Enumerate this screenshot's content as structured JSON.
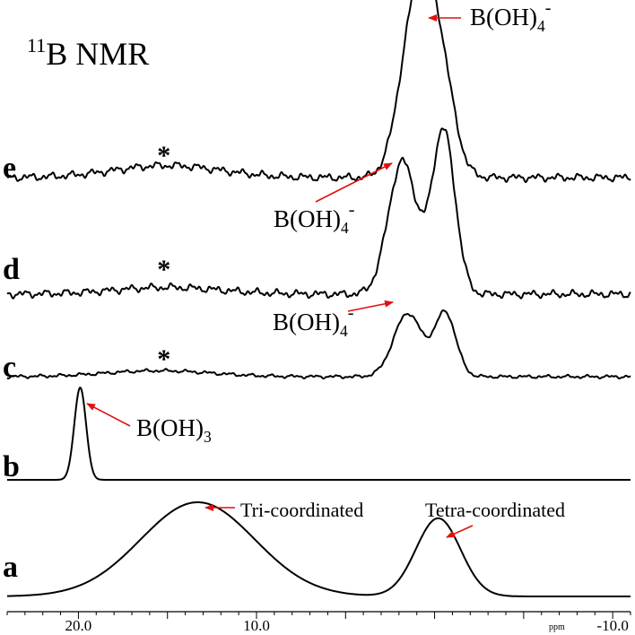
{
  "chart_data": {
    "type": "line",
    "title": "NMR",
    "title_superscript": "11",
    "title_prefix_letter": "B",
    "x_axis": {
      "reversed": true,
      "range": [
        24.0,
        -11.0
      ],
      "unit_label": "ppm",
      "tick_labels": [
        {
          "value": 20.0,
          "label": "20.0"
        },
        {
          "value": 10.0,
          "label": "10.0"
        },
        {
          "value": -10.0,
          "label": "-10.0"
        }
      ],
      "minor_tick_step": 1,
      "major_tick_step": 5
    },
    "grid": false,
    "series": [
      {
        "name": "a",
        "peaks": [
          {
            "center": 13.3,
            "height": 1.0,
            "sigma": 3.2
          },
          {
            "center": -0.2,
            "height": 0.83,
            "sigma": 1.25
          }
        ]
      },
      {
        "name": "b",
        "peaks": [
          {
            "center": 19.9,
            "height": 1.0,
            "sigma": 0.33
          }
        ]
      },
      {
        "name": "c",
        "peaks": [
          {
            "center": 1.5,
            "height": 0.85,
            "sigma": 0.8
          },
          {
            "center": -0.6,
            "height": 0.85,
            "sigma": 0.6
          },
          {
            "center": 15.5,
            "height": 0.08,
            "sigma": 3.0
          }
        ],
        "annotation_asterisk_at": 15.2
      },
      {
        "name": "d",
        "peaks": [
          {
            "center": 1.8,
            "height": 0.78,
            "sigma": 0.8
          },
          {
            "center": -0.5,
            "height": 0.96,
            "sigma": 0.65
          },
          {
            "center": 15.0,
            "height": 0.04,
            "sigma": 3.0
          }
        ],
        "annotation_asterisk_at": 15.2
      },
      {
        "name": "e",
        "peaks": [
          {
            "center": 1.0,
            "height": 1.0,
            "sigma": 0.9
          },
          {
            "center": -0.3,
            "height": 0.55,
            "sigma": 0.8
          },
          {
            "center": 15.0,
            "height": 0.07,
            "sigma": 3.0
          }
        ],
        "annotation_asterisk_at": 15.2
      }
    ],
    "annotations": [
      {
        "text": "Tri-coordinated",
        "trace": "a",
        "points_to_x": 13.0
      },
      {
        "text": "Tetra-coordinated",
        "trace": "a",
        "points_to_x": -1.3
      },
      {
        "text": "B(OH)",
        "subscript": "3",
        "trace": "b",
        "points_to_x": 19.6
      },
      {
        "text": "B(OH)",
        "subscript": "4",
        "superscript": "-",
        "trace": "c",
        "points_to_x": 1.2
      },
      {
        "text": "B(OH)",
        "subscript": "4",
        "superscript": "-",
        "trace": "d",
        "points_to_x": 1.6
      },
      {
        "text": "B(OH)",
        "subscript": "4",
        "superscript": "-",
        "trace": "e",
        "points_to_x": -0.6
      }
    ],
    "asterisk_symbol": "*",
    "colors": {
      "trace": "#000000",
      "arrow": "#e01010",
      "background": "#ffffff"
    }
  }
}
